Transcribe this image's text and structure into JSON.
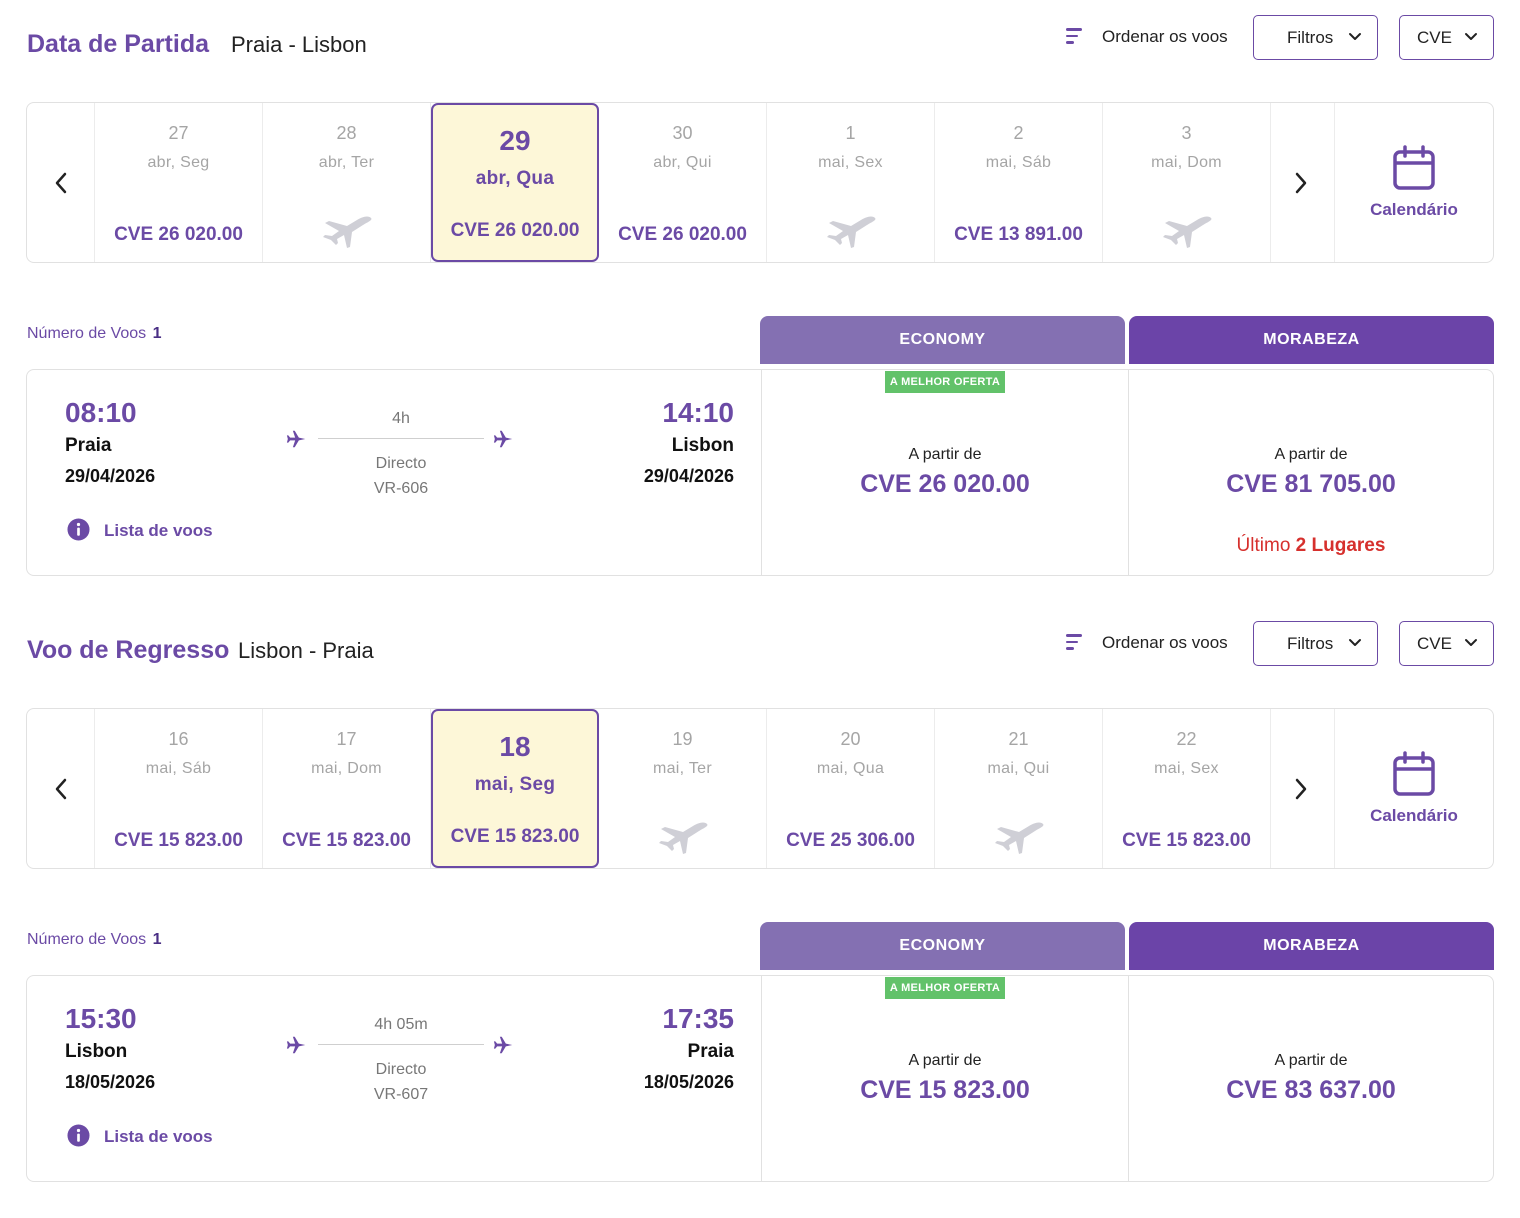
{
  "colors": {
    "accent": "#6b4aa5",
    "economy_tab": "#8470b2",
    "morabeza_tab": "#6b44a8",
    "selected_day_bg": "#fdf7d8",
    "best_badge": "#62c26a",
    "alert": "#d6302d"
  },
  "outbound": {
    "title": "Data de Partida",
    "route": "Praia - Lisbon",
    "sort_label": "Ordenar os voos",
    "filter_label": "Filtros",
    "currency_label": "CVE",
    "calendar_label": "Calendário",
    "days": [
      {
        "num": "27",
        "sub": "abr, Seg",
        "price": "CVE 26 020.00",
        "available": true,
        "selected": false
      },
      {
        "num": "28",
        "sub": "abr, Ter",
        "price": "",
        "available": false,
        "selected": false
      },
      {
        "num": "29",
        "sub": "abr, Qua",
        "price": "CVE 26 020.00",
        "available": true,
        "selected": true
      },
      {
        "num": "30",
        "sub": "abr, Qui",
        "price": "CVE 26 020.00",
        "available": true,
        "selected": false
      },
      {
        "num": "1",
        "sub": "mai, Sex",
        "price": "",
        "available": false,
        "selected": false
      },
      {
        "num": "2",
        "sub": "mai, Sáb",
        "price": "CVE 13 891.00",
        "available": true,
        "selected": false
      },
      {
        "num": "3",
        "sub": "mai, Dom",
        "price": "",
        "available": false,
        "selected": false
      }
    ],
    "count_label": "Número de Voos",
    "count_value": "1",
    "tabs": {
      "economy": "ECONOMY",
      "morabeza": "MORABEZA"
    },
    "flight": {
      "dep_time": "08:10",
      "dep_city": "Praia",
      "dep_date": "29/04/2026",
      "arr_time": "14:10",
      "arr_city": "Lisbon",
      "arr_date": "29/04/2026",
      "duration": "4h",
      "stops": "Directo",
      "flight_no": "VR-606",
      "list_link": "Lista de voos"
    },
    "fares": {
      "best_badge": "A MELHOR OFERTA",
      "from_label": "A partir de",
      "economy_price": "CVE 26 020.00",
      "morabeza_price": "CVE 81 705.00",
      "seats_prefix": "Último",
      "seats_count": "2 Lugares"
    }
  },
  "return": {
    "title": "Voo de Regresso",
    "route": "Lisbon - Praia",
    "sort_label": "Ordenar os voos",
    "filter_label": "Filtros",
    "currency_label": "CVE",
    "calendar_label": "Calendário",
    "days": [
      {
        "num": "16",
        "sub": "mai, Sáb",
        "price": "CVE 15 823.00",
        "available": true,
        "selected": false
      },
      {
        "num": "17",
        "sub": "mai, Dom",
        "price": "CVE 15 823.00",
        "available": true,
        "selected": false
      },
      {
        "num": "18",
        "sub": "mai, Seg",
        "price": "CVE 15 823.00",
        "available": true,
        "selected": true
      },
      {
        "num": "19",
        "sub": "mai, Ter",
        "price": "",
        "available": false,
        "selected": false
      },
      {
        "num": "20",
        "sub": "mai, Qua",
        "price": "CVE 25 306.00",
        "available": true,
        "selected": false
      },
      {
        "num": "21",
        "sub": "mai, Qui",
        "price": "",
        "available": false,
        "selected": false
      },
      {
        "num": "22",
        "sub": "mai, Sex",
        "price": "CVE 15 823.00",
        "available": true,
        "selected": false
      }
    ],
    "count_label": "Número de Voos",
    "count_value": "1",
    "tabs": {
      "economy": "ECONOMY",
      "morabeza": "MORABEZA"
    },
    "flight": {
      "dep_time": "15:30",
      "dep_city": "Lisbon",
      "dep_date": "18/05/2026",
      "arr_time": "17:35",
      "arr_city": "Praia",
      "arr_date": "18/05/2026",
      "duration": "4h 05m",
      "stops": "Directo",
      "flight_no": "VR-607",
      "list_link": "Lista de voos"
    },
    "fares": {
      "best_badge": "A MELHOR OFERTA",
      "from_label": "A partir de",
      "economy_price": "CVE 15 823.00",
      "morabeza_price": "CVE 83 637.00",
      "seats_prefix": "",
      "seats_count": ""
    }
  }
}
